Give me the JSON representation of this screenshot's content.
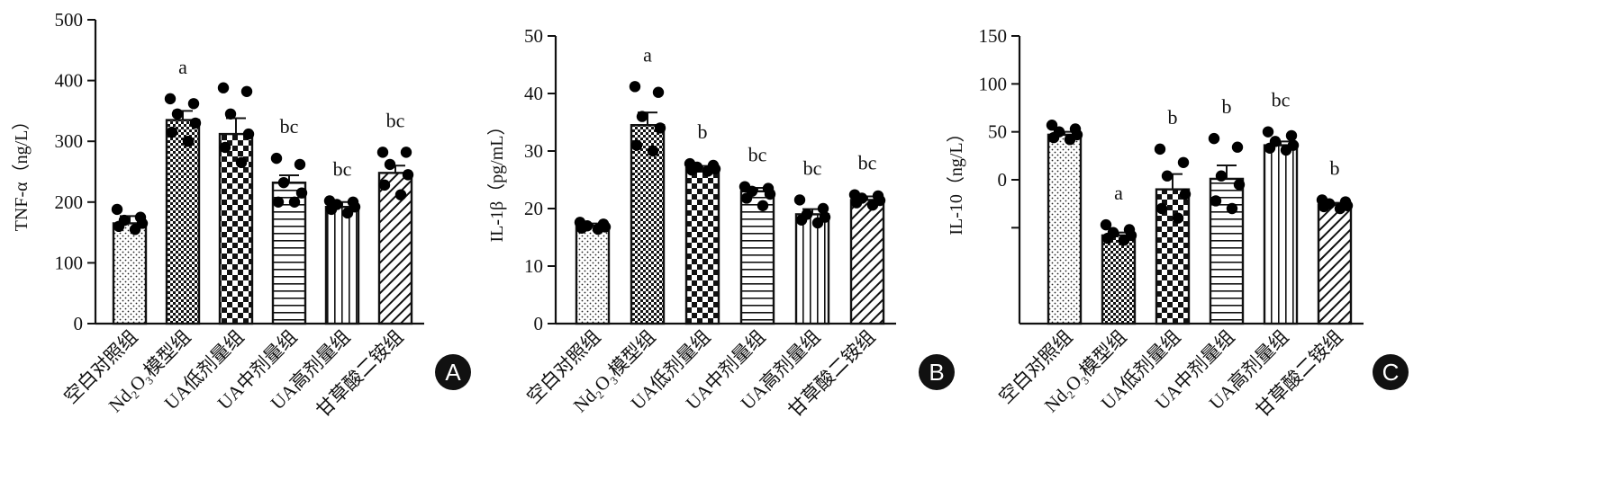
{
  "chart_data": [
    {
      "type": "bar",
      "panel_label": "A",
      "ylabel": "TNF-α（ng/L）",
      "yticks": [
        "0",
        "100",
        "200",
        "300",
        "400",
        "500"
      ],
      "ylim": [
        0,
        500
      ],
      "categories": [
        "空白对照组",
        "Nd₂O₃模型组",
        "UA低剂量组",
        "UA中剂量组",
        "UA高剂量组",
        "甘草酸二铵组"
      ],
      "values": [
        165,
        335,
        312,
        232,
        192,
        248
      ],
      "errors": [
        12,
        15,
        26,
        12,
        8,
        12
      ],
      "significance": [
        "",
        "a",
        "",
        "bc",
        "bc",
        "bc"
      ],
      "points": [
        [
          188,
          175,
          170,
          165,
          160,
          155
        ],
        [
          370,
          362,
          345,
          330,
          315,
          300
        ],
        [
          388,
          382,
          345,
          312,
          290,
          265
        ],
        [
          272,
          262,
          232,
          215,
          200,
          200
        ],
        [
          202,
          200,
          196,
          192,
          188,
          182
        ],
        [
          282,
          282,
          262,
          245,
          228,
          212
        ]
      ],
      "patterns": [
        "dots",
        "checker-fine",
        "checker-coarse",
        "horizontal",
        "vertical",
        "diagonal"
      ]
    },
    {
      "type": "bar",
      "panel_label": "B",
      "ylabel": "IL-1β（pg/mL）",
      "yticks": [
        "0",
        "10",
        "20",
        "30",
        "40",
        "50"
      ],
      "ylim": [
        0,
        50
      ],
      "categories": [
        "空白对照组",
        "Nd₂O₃模型组",
        "UA低剂量组",
        "UA中剂量组",
        "UA高剂量组",
        "甘草酸二铵组"
      ],
      "values": [
        17,
        34.5,
        27,
        23,
        19,
        21.5
      ],
      "errors": [
        0.4,
        2.2,
        0.4,
        0.6,
        0.9,
        0.6
      ],
      "significance": [
        "",
        "a",
        "b",
        "bc",
        "bc",
        "bc"
      ],
      "points": [
        [
          17.6,
          17.3,
          17.0,
          16.8,
          16.6,
          16.4
        ],
        [
          41.2,
          40.2,
          36.0,
          34.0,
          31.0,
          30.0
        ],
        [
          27.8,
          27.5,
          27.2,
          26.9,
          26.7,
          26.5
        ],
        [
          23.8,
          23.5,
          23.0,
          22.5,
          21.8,
          20.5
        ],
        [
          21.5,
          20.0,
          19.0,
          18.5,
          18.0,
          17.5
        ],
        [
          22.4,
          22.2,
          21.8,
          21.4,
          21.0,
          20.6
        ]
      ],
      "patterns": [
        "dots",
        "checker-fine",
        "checker-coarse",
        "horizontal",
        "vertical",
        "diagonal"
      ]
    },
    {
      "type": "bar",
      "panel_label": "C",
      "ylabel": "IL-10（ng/L）",
      "yticks": [
        "",
        "0",
        "50",
        "100",
        "150"
      ],
      "ytick_values": [
        -50,
        0,
        50,
        100,
        150
      ],
      "ylim": [
        -150,
        150
      ],
      "categories": [
        "空白对照组",
        "Nd₂O₃模型组",
        "UA低剂量组",
        "UA中剂量组",
        "UA高剂量组",
        "甘草酸二铵组"
      ],
      "values": [
        47,
        -58,
        -10,
        1,
        36,
        -26
      ],
      "errors": [
        3,
        3,
        16,
        14,
        4,
        2
      ],
      "significance": [
        "",
        "a",
        "b",
        "b",
        "bc",
        "b"
      ],
      "points": [
        [
          57,
          53,
          50,
          47,
          44,
          42
        ],
        [
          -47,
          -52,
          -55,
          -58,
          -61,
          -63
        ],
        [
          32,
          18,
          4,
          -15,
          -30,
          -40
        ],
        [
          43,
          34,
          4,
          -5,
          -22,
          -30
        ],
        [
          50,
          46,
          40,
          36,
          33,
          31
        ],
        [
          -21,
          -23,
          -25,
          -27,
          -28,
          -30
        ]
      ],
      "patterns": [
        "dots",
        "checker-fine",
        "checker-coarse",
        "horizontal",
        "vertical",
        "diagonal"
      ]
    }
  ]
}
